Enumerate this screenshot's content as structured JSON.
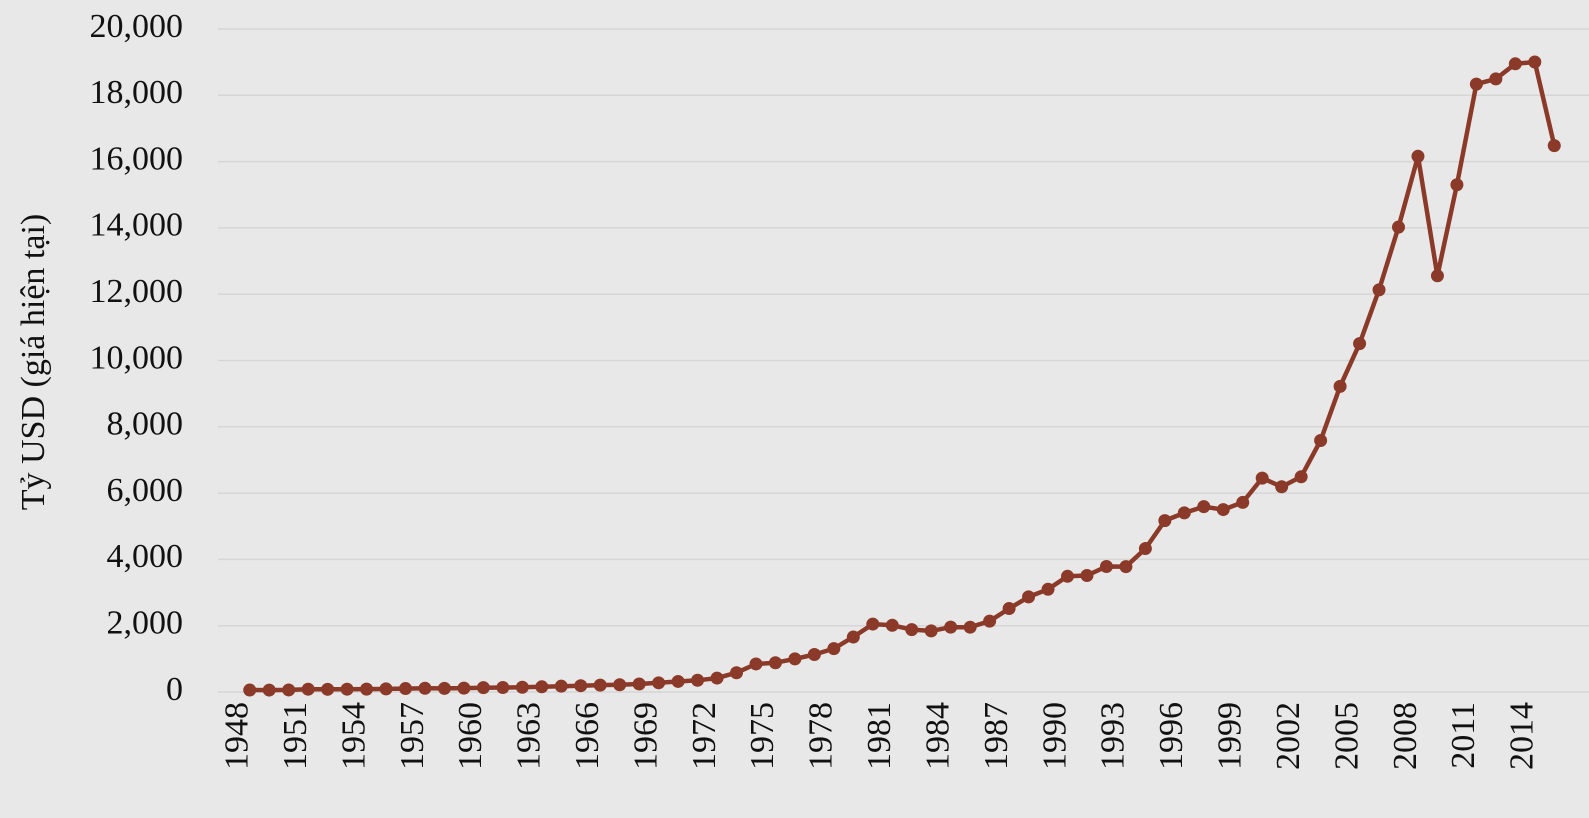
{
  "chart_data": {
    "type": "line",
    "y_label": "Tỷ USD (giá hiện tại)",
    "categories": [
      "1948",
      null,
      null,
      "1951",
      null,
      null,
      "1954",
      null,
      null,
      "1957",
      null,
      null,
      "1960",
      null,
      null,
      "1963",
      null,
      null,
      "1966",
      null,
      null,
      "1969",
      null,
      null,
      "1972",
      null,
      null,
      "1975",
      null,
      null,
      "1978",
      null,
      null,
      "1981",
      null,
      null,
      "1984",
      null,
      null,
      "1987",
      null,
      null,
      "1990",
      null,
      null,
      "1993",
      null,
      null,
      "1996",
      null,
      null,
      "1999",
      null,
      null,
      "2002",
      null,
      null,
      "2005",
      null,
      null,
      "2008",
      null,
      null,
      "2011",
      null,
      null,
      "2014",
      null
    ],
    "series": [
      {
        "color": "#8b3a2a",
        "values": [
          59,
          58,
          62,
          84,
          81,
          84,
          87,
          95,
          104,
          113,
          109,
          117,
          131,
          136,
          143,
          157,
          176,
          190,
          208,
          218,
          242,
          277,
          318,
          354,
          420,
          581,
          846,
          883,
          1000,
          1132,
          1309,
          1660,
          2049,
          2012,
          1882,
          1843,
          1956,
          1955,
          2138,
          2517,
          2869,
          3098,
          3490,
          3515,
          3786,
          3782,
          4327,
          5170,
          5404,
          5591,
          5503,
          5719,
          6452,
          6191,
          6492,
          7586,
          9220,
          10509,
          12131,
          14023,
          16160,
          12555,
          15301,
          18338,
          18496,
          18950,
          19005,
          16482
        ]
      }
    ],
    "ylim": [
      0,
      20000
    ],
    "yticks": [
      0,
      {
        "value": 2000,
        "label": "2,000"
      },
      {
        "value": 4000,
        "label": "4,000"
      },
      {
        "value": 6000,
        "label": "6,000"
      },
      {
        "value": 8000,
        "label": "8,000"
      },
      {
        "value": 10000,
        "label": "10,000"
      },
      {
        "value": 12000,
        "label": "12,000"
      },
      {
        "value": 14000,
        "label": "14,000"
      },
      {
        "value": 16000,
        "label": "16,000"
      },
      {
        "value": 18000,
        "label": "18,000"
      },
      {
        "value": 20000,
        "label": "20,000"
      }
    ],
    "grid": true,
    "markers": true
  }
}
